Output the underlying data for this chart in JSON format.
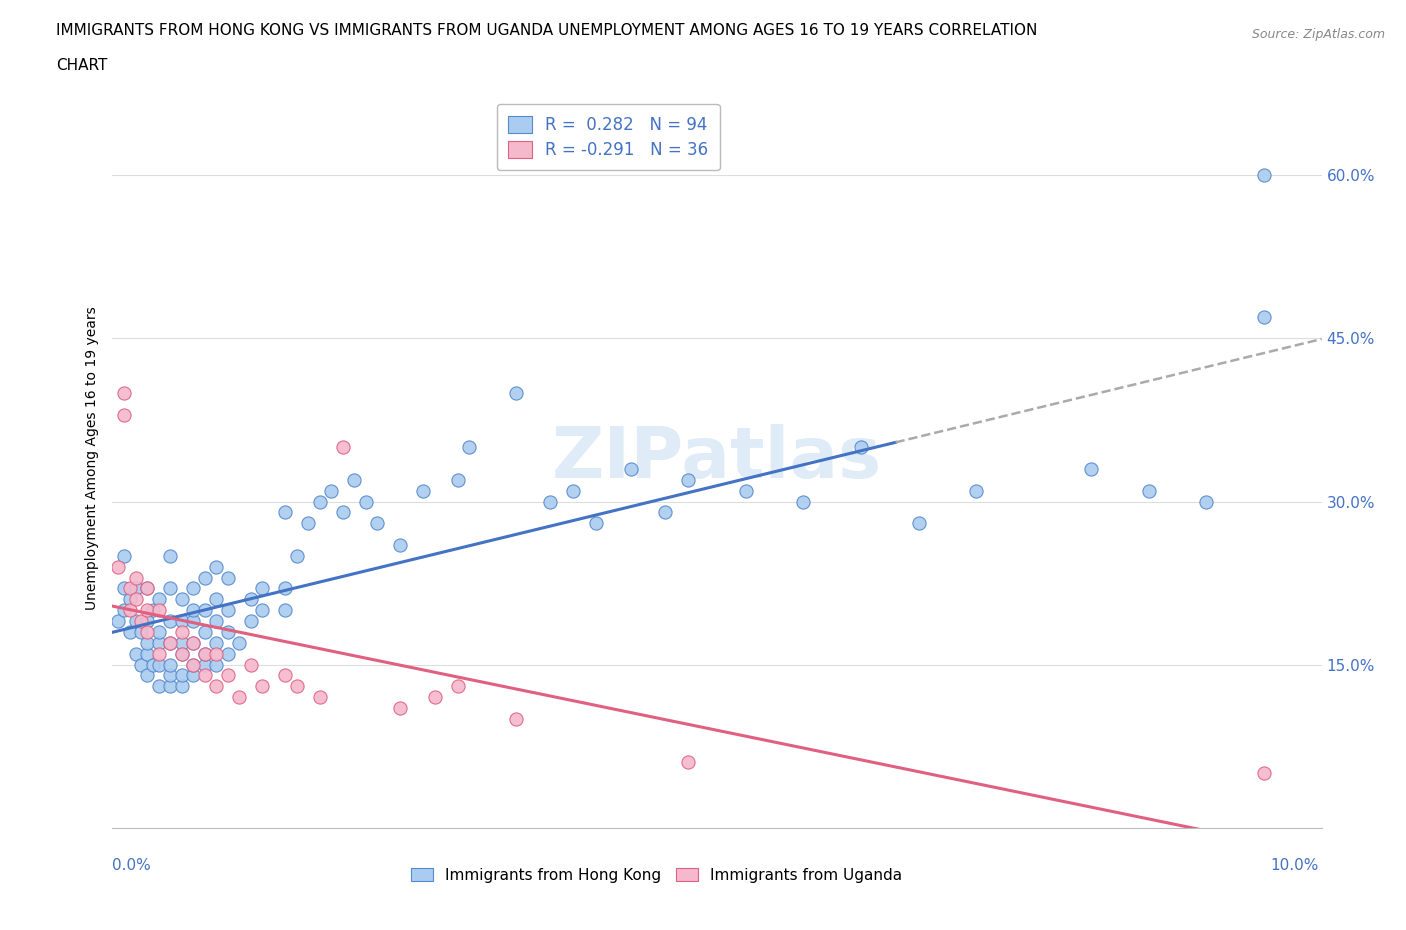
{
  "title_line1": "IMMIGRANTS FROM HONG KONG VS IMMIGRANTS FROM UGANDA UNEMPLOYMENT AMONG AGES 16 TO 19 YEARS CORRELATION",
  "title_line2": "CHART",
  "source": "Source: ZipAtlas.com",
  "ylabel": "Unemployment Among Ages 16 to 19 years",
  "ytick_vals": [
    0.15,
    0.3,
    0.45,
    0.6
  ],
  "legend_label_hk": "Immigrants from Hong Kong",
  "legend_label_ug": "Immigrants from Uganda",
  "color_hk_face": "#aaccf0",
  "color_ug_face": "#f5b8cc",
  "color_hk_edge": "#5588cc",
  "color_ug_edge": "#e06080",
  "color_hk_line": "#4472c4",
  "color_ug_line": "#e06080",
  "color_text_blue": "#4472c4",
  "watermark": "ZIPatlas",
  "hk_x": [
    0.0005,
    0.001,
    0.001,
    0.001,
    0.0015,
    0.0015,
    0.002,
    0.002,
    0.002,
    0.0025,
    0.0025,
    0.003,
    0.003,
    0.003,
    0.003,
    0.003,
    0.0035,
    0.0035,
    0.004,
    0.004,
    0.004,
    0.004,
    0.004,
    0.005,
    0.005,
    0.005,
    0.005,
    0.005,
    0.005,
    0.005,
    0.006,
    0.006,
    0.006,
    0.006,
    0.006,
    0.006,
    0.007,
    0.007,
    0.007,
    0.007,
    0.007,
    0.007,
    0.008,
    0.008,
    0.008,
    0.008,
    0.008,
    0.009,
    0.009,
    0.009,
    0.009,
    0.009,
    0.01,
    0.01,
    0.01,
    0.01,
    0.011,
    0.012,
    0.012,
    0.013,
    0.013,
    0.015,
    0.015,
    0.015,
    0.016,
    0.017,
    0.018,
    0.019,
    0.02,
    0.021,
    0.022,
    0.023,
    0.025,
    0.027,
    0.03,
    0.031,
    0.035,
    0.038,
    0.04,
    0.042,
    0.045,
    0.048,
    0.05,
    0.055,
    0.06,
    0.065,
    0.07,
    0.075,
    0.085,
    0.09,
    0.095,
    0.1,
    0.1
  ],
  "hk_y": [
    0.19,
    0.2,
    0.22,
    0.25,
    0.18,
    0.21,
    0.16,
    0.19,
    0.22,
    0.15,
    0.18,
    0.14,
    0.16,
    0.17,
    0.19,
    0.22,
    0.15,
    0.2,
    0.13,
    0.15,
    0.17,
    0.18,
    0.21,
    0.13,
    0.14,
    0.15,
    0.17,
    0.19,
    0.22,
    0.25,
    0.13,
    0.14,
    0.16,
    0.17,
    0.19,
    0.21,
    0.14,
    0.15,
    0.17,
    0.19,
    0.2,
    0.22,
    0.15,
    0.16,
    0.18,
    0.2,
    0.23,
    0.15,
    0.17,
    0.19,
    0.21,
    0.24,
    0.16,
    0.18,
    0.2,
    0.23,
    0.17,
    0.19,
    0.21,
    0.2,
    0.22,
    0.2,
    0.22,
    0.29,
    0.25,
    0.28,
    0.3,
    0.31,
    0.29,
    0.32,
    0.3,
    0.28,
    0.26,
    0.31,
    0.32,
    0.35,
    0.4,
    0.3,
    0.31,
    0.28,
    0.33,
    0.29,
    0.32,
    0.31,
    0.3,
    0.35,
    0.28,
    0.31,
    0.33,
    0.31,
    0.3,
    0.6,
    0.47
  ],
  "ug_x": [
    0.0005,
    0.001,
    0.001,
    0.0015,
    0.0015,
    0.002,
    0.002,
    0.0025,
    0.003,
    0.003,
    0.003,
    0.004,
    0.004,
    0.005,
    0.006,
    0.006,
    0.007,
    0.007,
    0.008,
    0.008,
    0.009,
    0.009,
    0.01,
    0.011,
    0.012,
    0.013,
    0.015,
    0.016,
    0.018,
    0.02,
    0.025,
    0.028,
    0.03,
    0.035,
    0.05,
    0.1
  ],
  "ug_y": [
    0.24,
    0.4,
    0.38,
    0.22,
    0.2,
    0.23,
    0.21,
    0.19,
    0.22,
    0.2,
    0.18,
    0.2,
    0.16,
    0.17,
    0.18,
    0.16,
    0.17,
    0.15,
    0.16,
    0.14,
    0.16,
    0.13,
    0.14,
    0.12,
    0.15,
    0.13,
    0.14,
    0.13,
    0.12,
    0.35,
    0.11,
    0.12,
    0.13,
    0.1,
    0.06,
    0.05
  ],
  "xlim": [
    0.0,
    0.105
  ],
  "ylim": [
    0.0,
    0.68
  ],
  "background_color": "#ffffff",
  "grid_color": "#dddddd"
}
